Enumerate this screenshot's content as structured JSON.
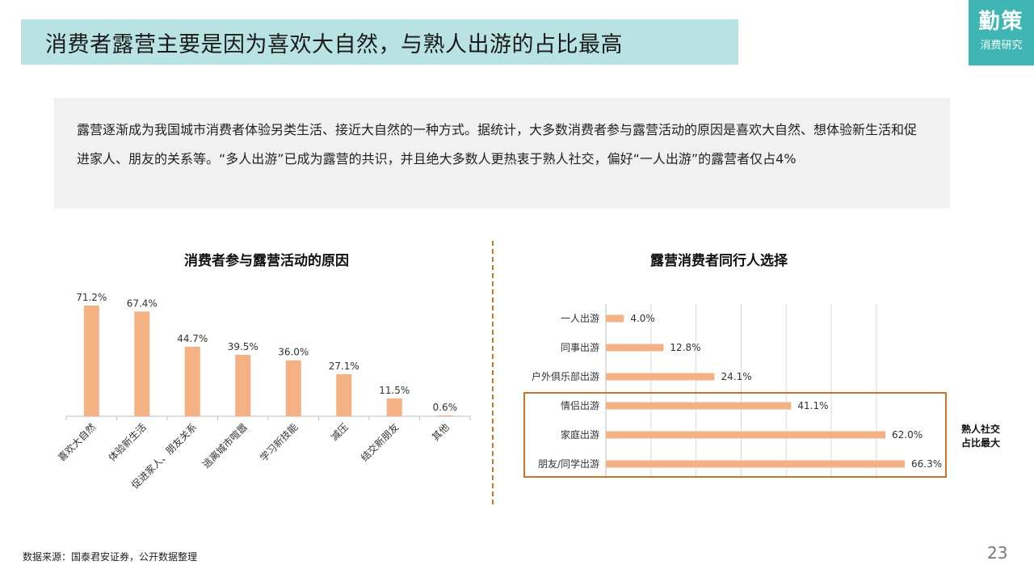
{
  "header": {
    "title": "消费者露营主要是因为喜欢大自然，与熟人出游的占比最高",
    "brand_main": "勤策",
    "brand_sub": "消费研究"
  },
  "intro": {
    "text": "露营逐渐成为我国城市消费者体验另类生活、接近大自然的一种方式。据统计，大多数消费者参与露营活动的原因是喜欢大自然、想体验新生活和促进家人、朋友的关系等。“多人出游”已成为露营的共识，并且绝大多数人更热衷于熟人社交，偏好“一人出游”的露营者仅占4%"
  },
  "chart_data": [
    {
      "type": "bar",
      "title": "消费者参与露营活动的原因",
      "categories": [
        "喜欢大自然",
        "体验新生活",
        "促进家人、朋友关系",
        "逃离城市喧嚣",
        "学习新技能",
        "减压",
        "结交新朋友",
        "其他"
      ],
      "values": [
        71.2,
        67.4,
        44.7,
        39.5,
        36.0,
        27.1,
        11.5,
        0.6
      ],
      "labels": [
        "71.2%",
        "67.4%",
        "44.7%",
        "39.5%",
        "36.0%",
        "27.1%",
        "11.5%",
        "0.6%"
      ],
      "unit": "%",
      "ylim": [
        0,
        75
      ],
      "color": "#f4b183"
    },
    {
      "type": "bar",
      "orientation": "horizontal",
      "title": "露营消费者同行人选择",
      "categories": [
        "一人出游",
        "同事出游",
        "户外俱乐部出游",
        "情侣出游",
        "家庭出游",
        "朋友/同学出游"
      ],
      "values": [
        4.0,
        12.8,
        24.1,
        41.1,
        62.0,
        66.3
      ],
      "labels": [
        "4.0%",
        "12.8%",
        "24.1%",
        "41.1%",
        "62.0%",
        "66.3%"
      ],
      "unit": "%",
      "xlim": [
        0,
        70
      ],
      "grid": true,
      "color": "#f4b183",
      "highlight_categories": [
        "情侣出游",
        "家庭出游",
        "朋友/同学出游"
      ],
      "annotation": "熟人社交占比最大"
    }
  ],
  "annotation": {
    "line1": "熟人社交",
    "line2": "占比最大"
  },
  "footer": {
    "source": "数据来源：国泰君安证券，公开数据整理",
    "page_number": "23"
  },
  "colors": {
    "title_bg": "#b9e2e3",
    "brand_bg": "#3fb6b3",
    "bar": "#f4b183",
    "accent": "#c8742a"
  }
}
